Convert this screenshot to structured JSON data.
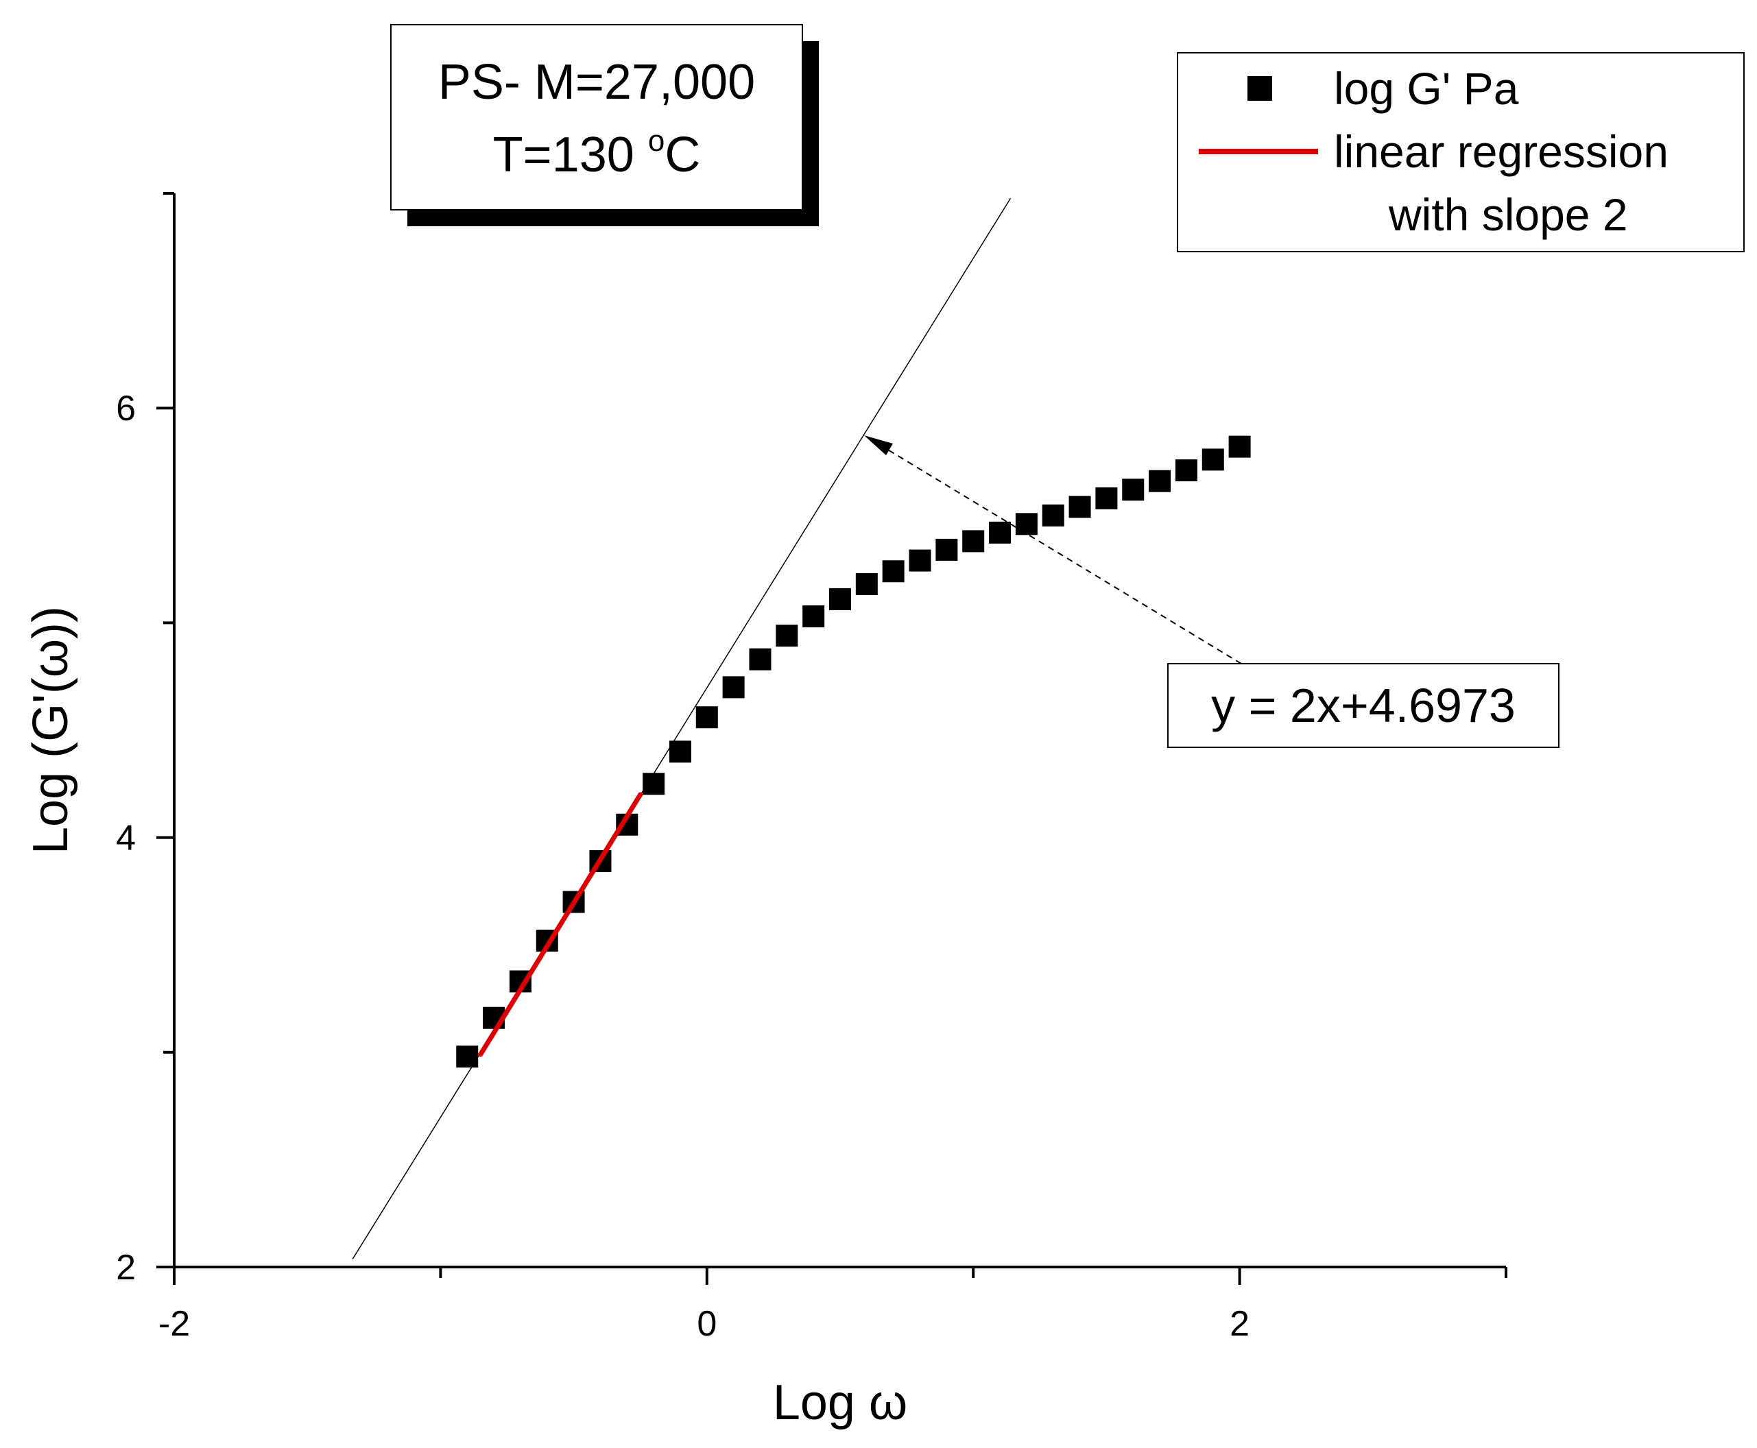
{
  "chart_data": {
    "type": "scatter",
    "xlabel": "Log ω",
    "ylabel": "Log (G'(ω))",
    "xlim": [
      -2,
      3
    ],
    "ylim": [
      2,
      7
    ],
    "x_ticks": [
      -2,
      0,
      2
    ],
    "y_ticks": [
      2,
      4,
      6
    ],
    "x_minor_ticks": [
      -1,
      1,
      3
    ],
    "y_minor_ticks": [
      3,
      5,
      7
    ],
    "series": [
      {
        "name": "log G' Pa",
        "marker": "square",
        "color": "#000000",
        "x": [
          -0.9,
          -0.8,
          -0.7,
          -0.6,
          -0.5,
          -0.4,
          -0.3,
          -0.2,
          -0.1,
          0.0,
          0.1,
          0.2,
          0.3,
          0.4,
          0.5,
          0.6,
          0.7,
          0.8,
          0.9,
          1.0,
          1.1,
          1.2,
          1.3,
          1.4,
          1.5,
          1.6,
          1.7,
          1.8,
          1.9,
          2.0
        ],
        "y": [
          2.98,
          3.16,
          3.33,
          3.52,
          3.7,
          3.89,
          4.06,
          4.25,
          4.4,
          4.56,
          4.7,
          4.83,
          4.94,
          5.03,
          5.11,
          5.18,
          5.24,
          5.29,
          5.34,
          5.38,
          5.42,
          5.46,
          5.5,
          5.54,
          5.58,
          5.62,
          5.66,
          5.71,
          5.76,
          5.82
        ]
      },
      {
        "name": "linear regression with slope 2",
        "type": "line",
        "color": "#e00000",
        "x": [
          -0.85,
          -0.25
        ],
        "y": [
          2.99,
          4.2
        ]
      }
    ],
    "reference_line": {
      "slope": 2,
      "intercept": 4.6973,
      "x_range": [
        -1.33,
        1.14
      ]
    },
    "annotation": {
      "text": "y = 2x+4.6973",
      "arrow_to": {
        "x": 0.6,
        "y": 5.9
      }
    },
    "info_box": {
      "line1": "PS- M=27,000",
      "line2_prefix": "T=130 ",
      "line2_sup": "o",
      "line2_suffix": "C"
    },
    "legend": {
      "position": "top-right",
      "entries": [
        "log G' Pa",
        "linear regression",
        "with slope 2"
      ]
    }
  }
}
